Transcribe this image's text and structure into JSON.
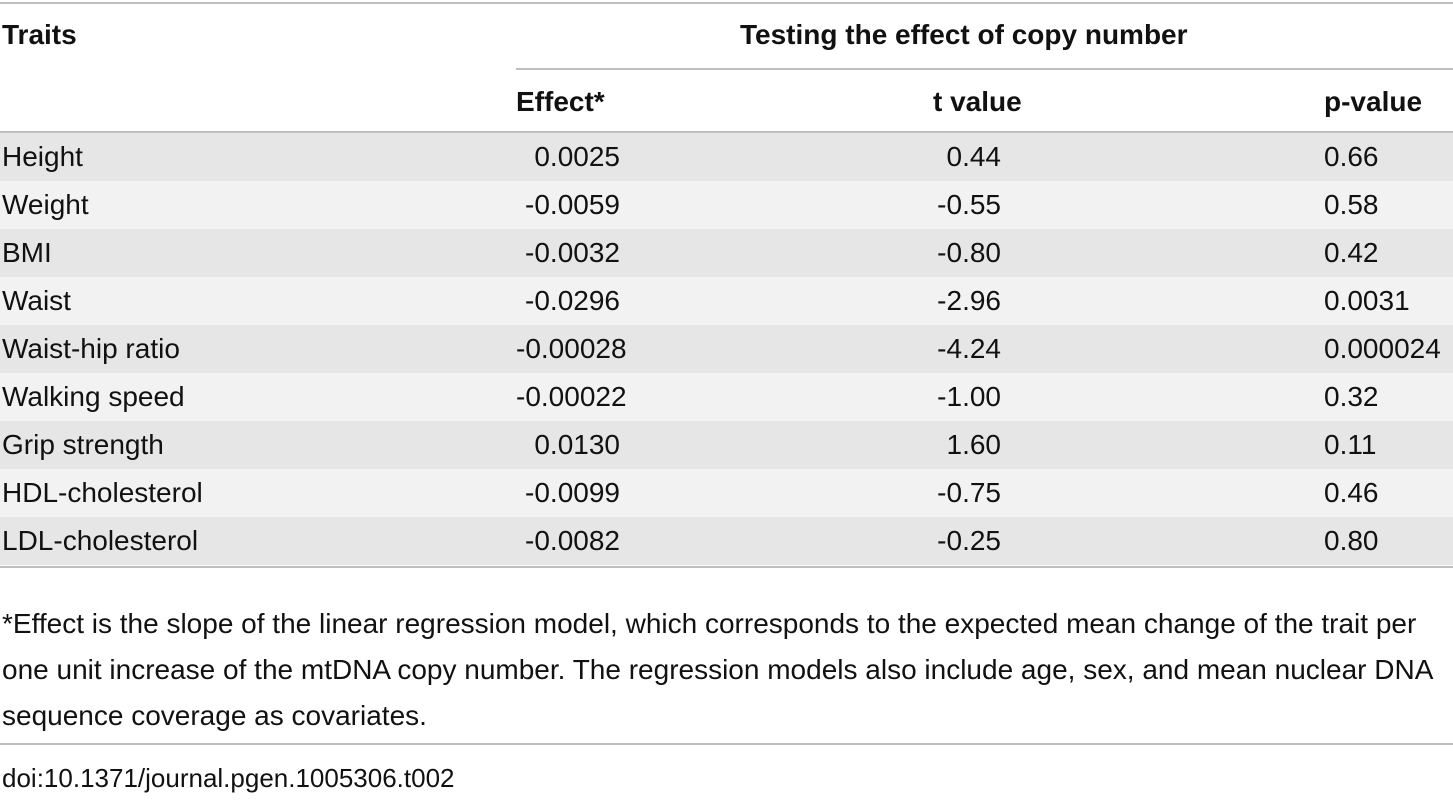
{
  "table": {
    "header": {
      "traits": "Traits",
      "group": "Testing the effect of copy number",
      "effect": "Effect*",
      "t_value": "t value",
      "p_value": "p-value"
    },
    "rows": [
      {
        "trait": "Height",
        "effect": "0.0025",
        "t": "0.44",
        "p": "0.66"
      },
      {
        "trait": "Weight",
        "effect": "-0.0059",
        "t": "-0.55",
        "p": "0.58"
      },
      {
        "trait": "BMI",
        "effect": "-0.0032",
        "t": "-0.80",
        "p": "0.42"
      },
      {
        "trait": "Waist",
        "effect": "-0.0296",
        "t": "-2.96",
        "p": "0.0031"
      },
      {
        "trait": "Waist-hip ratio",
        "effect": "-0.00028",
        "t": "-4.24",
        "p": "0.000024"
      },
      {
        "trait": "Walking speed",
        "effect": "-0.00022",
        "t": "-1.00",
        "p": "0.32"
      },
      {
        "trait": "Grip strength",
        "effect": "0.0130",
        "t": "1.60",
        "p": "0.11"
      },
      {
        "trait": "HDL-cholesterol",
        "effect": "-0.0099",
        "t": "-0.75",
        "p": "0.46"
      },
      {
        "trait": "LDL-cholesterol",
        "effect": "-0.0082",
        "t": "-0.25",
        "p": "0.80"
      }
    ]
  },
  "footnote": "*Effect is the slope of the linear regression model, which corresponds to the expected mean change of the trait per one unit increase of the mtDNA copy number. The regression models also include age, sex, and mean nuclear DNA sequence coverage as covariates.",
  "doi": "doi:10.1371/journal.pgen.1005306.t002"
}
